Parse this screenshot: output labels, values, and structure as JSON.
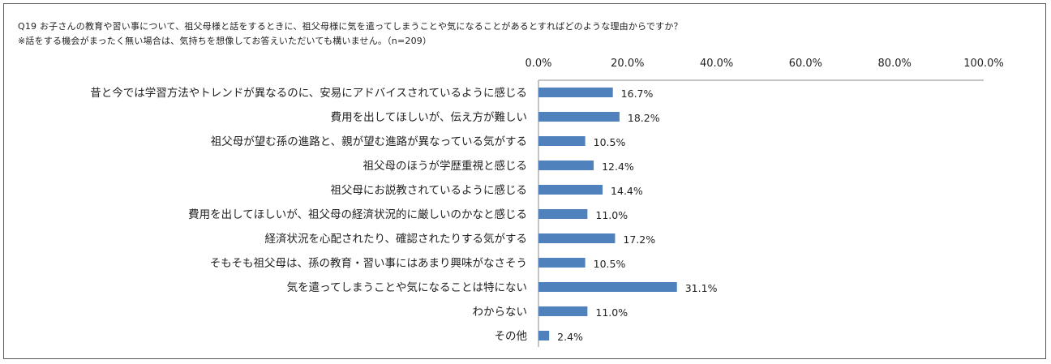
{
  "chart_data": {
    "type": "bar",
    "orientation": "horizontal",
    "title": "Q19 お子さんの教育や習い事について、祖父母様と話をするときに、祖父母様に気を遣ってしまうことや気になることがあるとすればどのような理由からですか？",
    "subtitle": "※話をする機会がまったく無い場合は、気持ちを想像してお答えいただいても構いません。（n=209）",
    "categories": [
      "昔と今では学習方法やトレンドが異なるのに、安易にアドバイスされているように感じる",
      "費用を出してほしいが、伝え方が難しい",
      "祖父母が望む孫の進路と、親が望む進路が異なっている気がする",
      "祖父母のほうが学歴重視と感じる",
      "祖父母にお説教されているように感じる",
      "費用を出してほしいが、祖父母の経済状況的に厳しいのかなと感じる",
      "経済状況を心配されたり、確認されたりする気がする",
      "そもそも祖父母は、孫の教育・習い事にはあまり興味がなさそう",
      "気を遣ってしまうことや気になることは特にない",
      "わからない",
      "その他"
    ],
    "values": [
      16.7,
      18.2,
      10.5,
      12.4,
      14.4,
      11.0,
      17.2,
      10.5,
      31.1,
      11.0,
      2.4
    ],
    "value_labels": [
      "16.7%",
      "18.2%",
      "10.5%",
      "12.4%",
      "14.4%",
      "11.0%",
      "17.2%",
      "10.5%",
      "31.1%",
      "11.0%",
      "2.4%"
    ],
    "xlim": [
      0,
      100
    ],
    "ticks": [
      0,
      20,
      40,
      60,
      80,
      100
    ],
    "tick_labels": [
      "0.0%",
      "20.0%",
      "40.0%",
      "60.0%",
      "80.0%",
      "100.0%"
    ],
    "axis_position": "top",
    "grid": false,
    "bar_color": "#4f81bd"
  }
}
